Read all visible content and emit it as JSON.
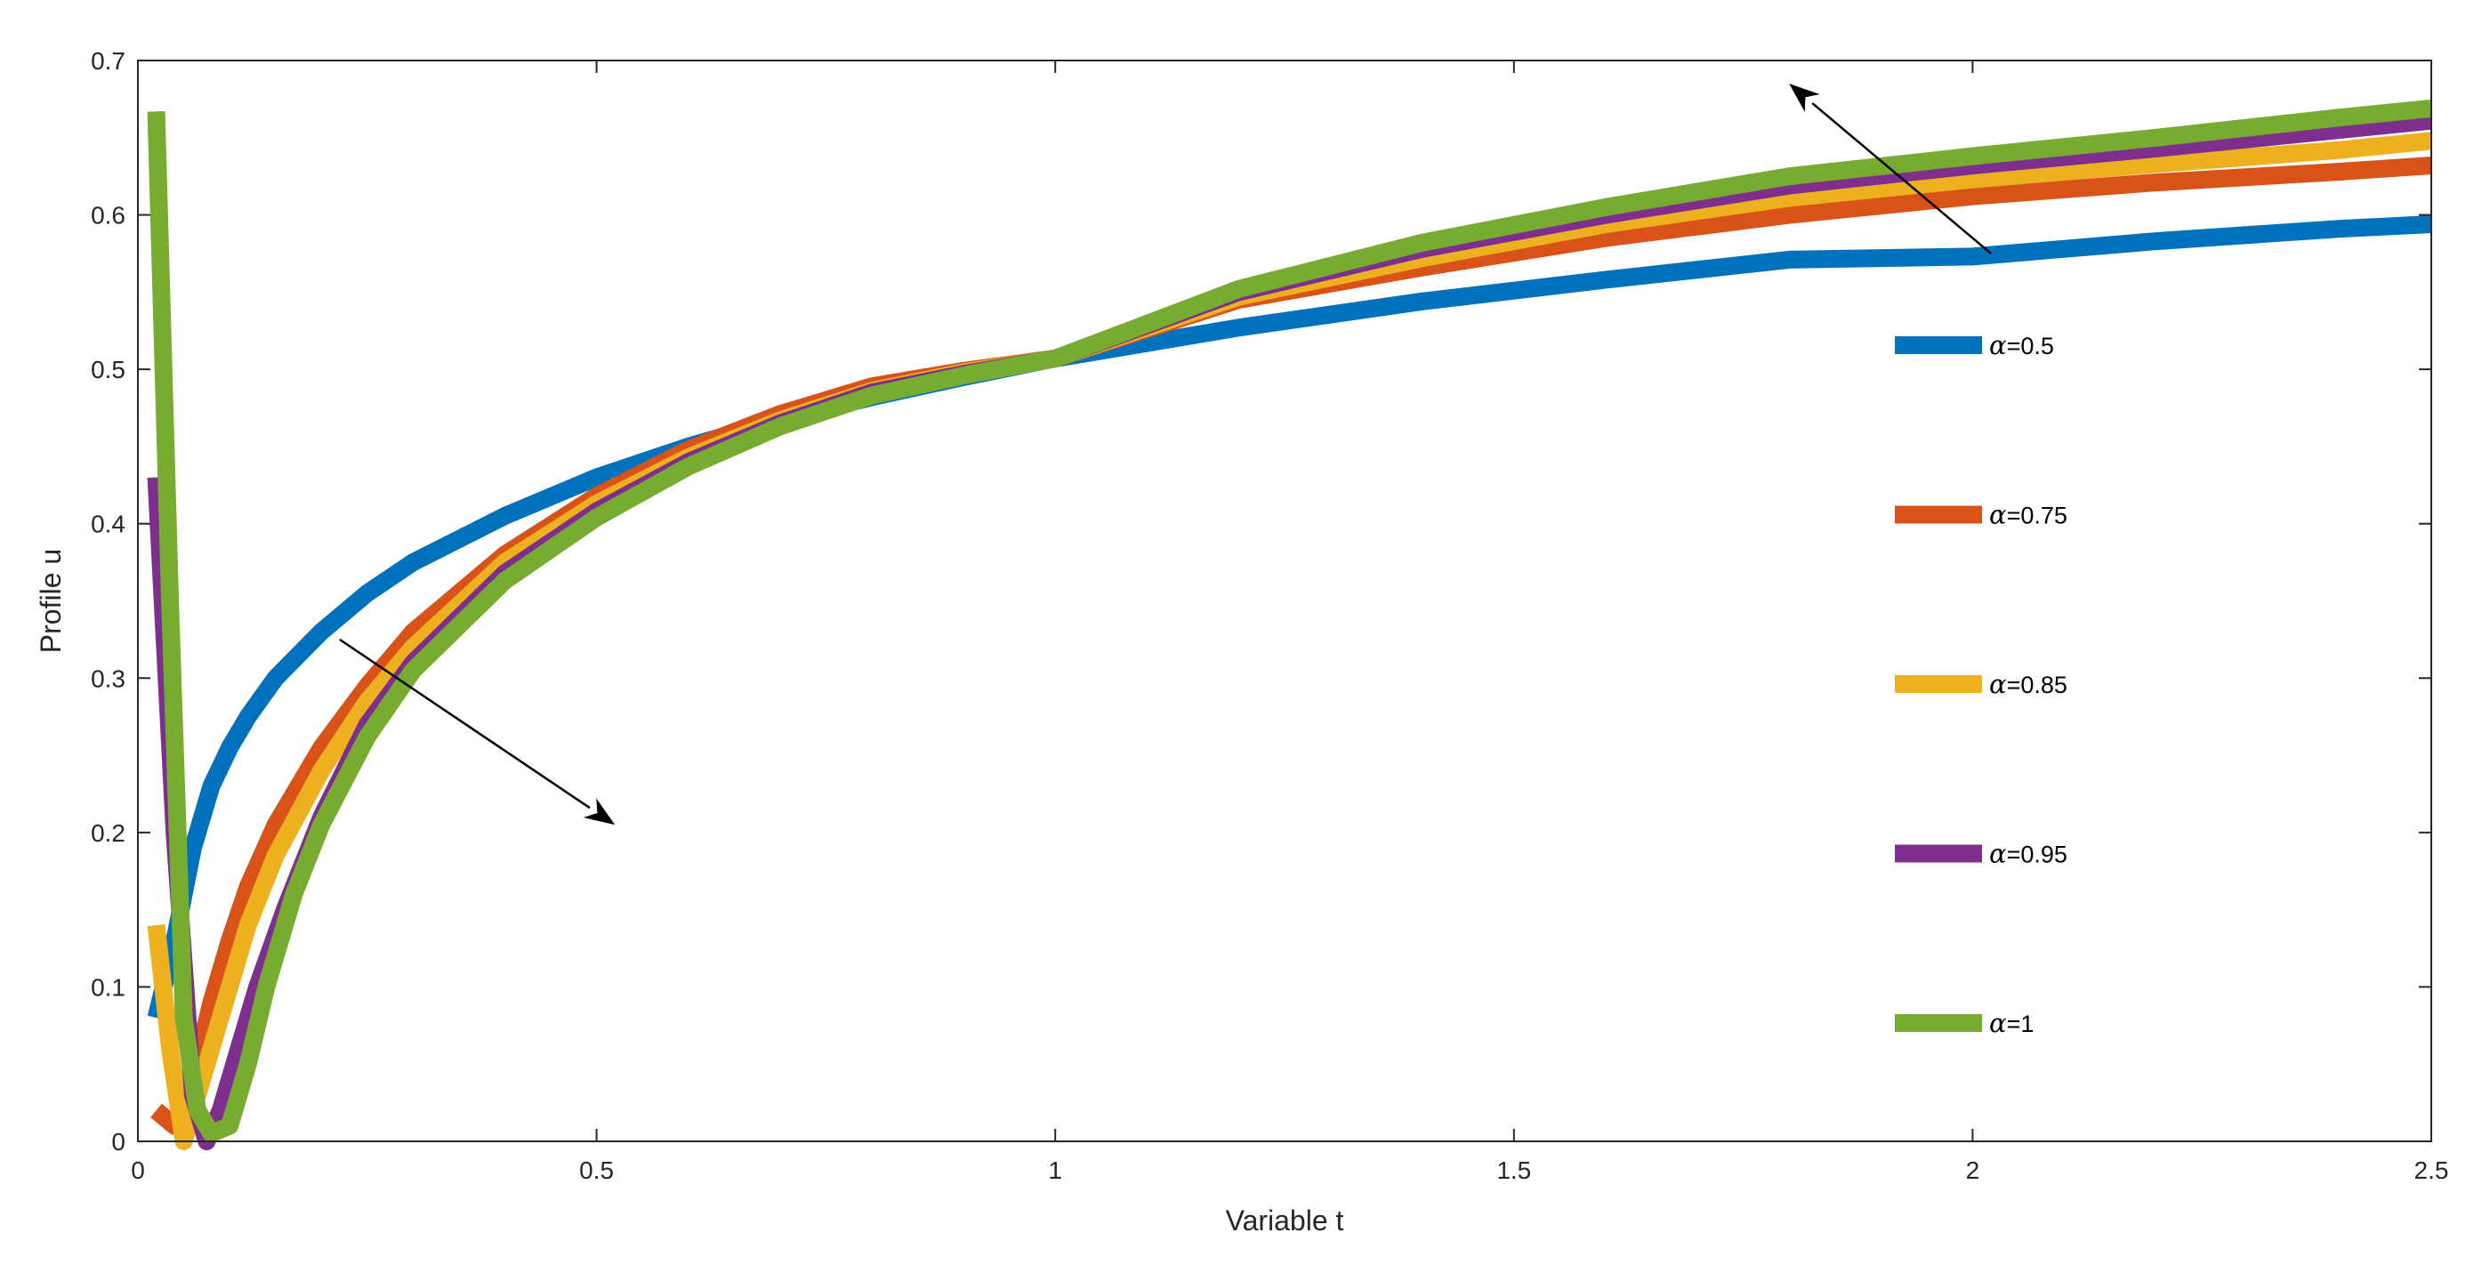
{
  "chart_data": {
    "type": "line",
    "title": "",
    "xlabel": "Variable t",
    "ylabel": "Profile u",
    "xlim": [
      0,
      2.5
    ],
    "ylim": [
      0,
      0.7
    ],
    "xticks": [
      0,
      0.5,
      1,
      1.5,
      2,
      2.5
    ],
    "xtick_labels": [
      "0",
      "0.5",
      "1",
      "1.5",
      "2",
      "2.5"
    ],
    "yticks": [
      0,
      0.1,
      0.2,
      0.3,
      0.4,
      0.5,
      0.6,
      0.7
    ],
    "ytick_labels": [
      "0",
      "0.1",
      "0.2",
      "0.3",
      "0.4",
      "0.5",
      "0.6",
      "0.7"
    ],
    "grid": false,
    "box": true,
    "legend_position": "right",
    "series": [
      {
        "name": "α=0.5",
        "alpha_symbol": "α",
        "alpha_value": "=0.5",
        "color": "#0072BD",
        "x": [
          0.02,
          0.04,
          0.06,
          0.08,
          0.1,
          0.12,
          0.15,
          0.2,
          0.25,
          0.3,
          0.4,
          0.5,
          0.6,
          0.7,
          0.8,
          0.9,
          1.0,
          1.2,
          1.4,
          1.6,
          1.8,
          2.0,
          2.2,
          2.4,
          2.5
        ],
        "y": [
          0.08,
          0.13,
          0.19,
          0.23,
          0.255,
          0.275,
          0.3,
          0.33,
          0.355,
          0.375,
          0.405,
          0.43,
          0.45,
          0.467,
          0.482,
          0.495,
          0.507,
          0.527,
          0.544,
          0.558,
          0.571,
          0.573,
          0.583,
          0.591,
          0.594
        ]
      },
      {
        "name": "α=0.75",
        "alpha_symbol": "α",
        "alpha_value": "=0.75",
        "color": "#D95319",
        "x": [
          0.02,
          0.04,
          0.06,
          0.08,
          0.1,
          0.12,
          0.15,
          0.2,
          0.25,
          0.3,
          0.4,
          0.5,
          0.6,
          0.7,
          0.8,
          0.9,
          1.0,
          1.2,
          1.4,
          1.6,
          1.8,
          2.0,
          2.2,
          2.4,
          2.5
        ],
        "y": [
          0.02,
          0.01,
          0.04,
          0.09,
          0.13,
          0.165,
          0.205,
          0.255,
          0.295,
          0.33,
          0.38,
          0.418,
          0.448,
          0.471,
          0.489,
          0.499,
          0.507,
          0.545,
          0.566,
          0.585,
          0.6,
          0.612,
          0.621,
          0.628,
          0.632
        ]
      },
      {
        "name": "α=0.85",
        "alpha_symbol": "α",
        "alpha_value": "=0.85",
        "color": "#EDB120",
        "x": [
          0.02,
          0.035,
          0.05,
          0.065,
          0.08,
          0.1,
          0.12,
          0.15,
          0.2,
          0.25,
          0.3,
          0.4,
          0.5,
          0.6,
          0.7,
          0.8,
          0.9,
          1.0,
          1.2,
          1.4,
          1.6,
          1.8,
          2.0,
          2.2,
          2.4,
          2.5
        ],
        "y": [
          0.14,
          0.06,
          0.0,
          0.03,
          0.06,
          0.1,
          0.14,
          0.185,
          0.24,
          0.285,
          0.32,
          0.375,
          0.413,
          0.443,
          0.467,
          0.486,
          0.498,
          0.507,
          0.547,
          0.572,
          0.594,
          0.611,
          0.623,
          0.633,
          0.642,
          0.648
        ]
      },
      {
        "name": "α=0.95",
        "alpha_symbol": "α",
        "alpha_value": "=0.95",
        "color": "#7E2F8E",
        "x": [
          0.02,
          0.04,
          0.06,
          0.075,
          0.09,
          0.11,
          0.13,
          0.16,
          0.2,
          0.25,
          0.3,
          0.4,
          0.5,
          0.6,
          0.7,
          0.8,
          0.9,
          1.0,
          1.2,
          1.4,
          1.6,
          1.8,
          2.0,
          2.2,
          2.4,
          2.5
        ],
        "y": [
          0.43,
          0.2,
          0.03,
          0.0,
          0.02,
          0.06,
          0.1,
          0.15,
          0.21,
          0.27,
          0.31,
          0.368,
          0.408,
          0.44,
          0.465,
          0.485,
          0.497,
          0.507,
          0.55,
          0.578,
          0.6,
          0.619,
          0.632,
          0.643,
          0.655,
          0.661
        ]
      },
      {
        "name": "α=1",
        "alpha_symbol": "α",
        "alpha_value": "=1",
        "color": "#77AC30",
        "x": [
          0.02,
          0.035,
          0.05,
          0.065,
          0.08,
          0.1,
          0.12,
          0.14,
          0.17,
          0.2,
          0.25,
          0.3,
          0.4,
          0.5,
          0.6,
          0.7,
          0.8,
          0.9,
          1.0,
          1.2,
          1.4,
          1.6,
          1.8,
          2.0,
          2.2,
          2.4,
          2.5
        ],
        "y": [
          0.667,
          0.35,
          0.08,
          0.02,
          0.005,
          0.01,
          0.05,
          0.1,
          0.16,
          0.205,
          0.262,
          0.305,
          0.363,
          0.404,
          0.437,
          0.463,
          0.483,
          0.496,
          0.507,
          0.552,
          0.582,
          0.605,
          0.625,
          0.638,
          0.65,
          0.663,
          0.669
        ]
      }
    ],
    "annotations": [
      {
        "type": "arrow",
        "from": [
          0.22,
          0.325
        ],
        "to": [
          0.52,
          0.205
        ]
      },
      {
        "type": "arrow",
        "from": [
          2.02,
          0.575
        ],
        "to": [
          1.8,
          0.685
        ]
      }
    ]
  }
}
